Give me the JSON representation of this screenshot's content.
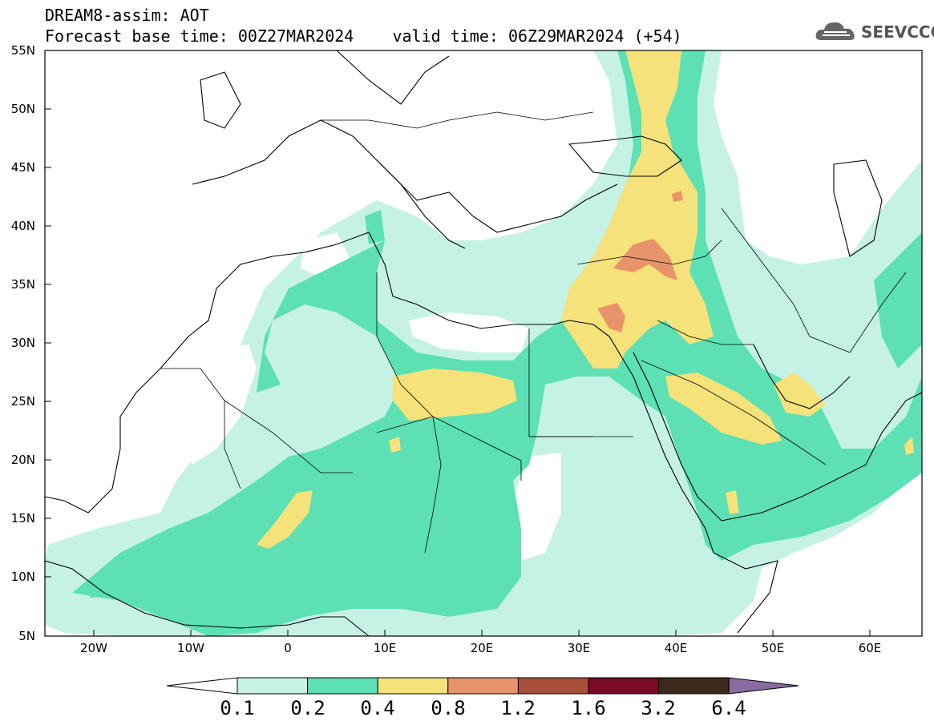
{
  "title": {
    "line1": "DREAM8-assim: AOT",
    "line2": "Forecast base time: 00Z27MAR2024    valid time: 06Z29MAR2024 (+54)"
  },
  "logo": {
    "text": "SEEVCCC",
    "icon": "cloud-icon"
  },
  "map": {
    "variable": "Aerosol Optical Thickness",
    "lon_range": [
      -25,
      65
    ],
    "lat_range": [
      5,
      55
    ],
    "lat_labels": [
      "55N",
      "50N",
      "45N",
      "40N",
      "35N",
      "30N",
      "25N",
      "20N",
      "15N",
      "10N",
      "5N"
    ],
    "lon_labels": [
      "20W",
      "10W",
      "0",
      "10E",
      "20E",
      "30E",
      "40E",
      "50E",
      "60E"
    ]
  },
  "colorbar": {
    "labels": [
      "0.1",
      "0.2",
      "0.4",
      "0.8",
      "1.2",
      "1.6",
      "3.2",
      "6.4"
    ],
    "colors": [
      "#ffffff",
      "#c6f2e6",
      "#5ce0b4",
      "#f5e27a",
      "#e8946a",
      "#a8503a",
      "#7a0a25",
      "#3a2a1a",
      "#8a6aa0"
    ]
  }
}
